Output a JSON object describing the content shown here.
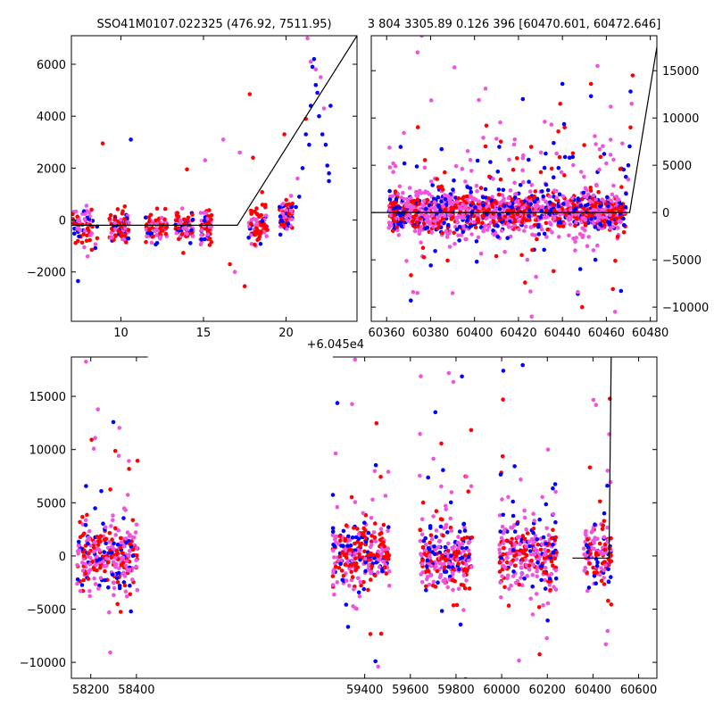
{
  "chart_data": [
    {
      "type": "scatter",
      "title": "SSO41M0107.022325 (476.92, 7511.95)",
      "offset_label": "+6.045e4",
      "xlim": [
        7,
        24.3
      ],
      "ylim": [
        -3900,
        7100
      ],
      "xticks": [
        10,
        15,
        20
      ],
      "yticks": [
        -2000,
        0,
        2000,
        4000,
        6000
      ],
      "tick_labels_y_side": "left",
      "model_line": [
        [
          7,
          -200
        ],
        [
          17.05,
          -200
        ],
        [
          24.3,
          7100
        ]
      ],
      "clusters": [
        {
          "x": [
            7.0,
            8.6
          ],
          "y_center": -300,
          "y_spread": 700
        },
        {
          "x": [
            9.3,
            10.5
          ],
          "y_center": -300,
          "y_spread": 550
        },
        {
          "x": [
            11.5,
            12.8
          ],
          "y_center": -250,
          "y_spread": 500
        },
        {
          "x": [
            13.3,
            14.4
          ],
          "y_center": -250,
          "y_spread": 500
        },
        {
          "x": [
            14.8,
            15.5
          ],
          "y_center": -250,
          "y_spread": 450
        },
        {
          "x": [
            17.7,
            18.9
          ],
          "y_center": -300,
          "y_spread": 700
        },
        {
          "x": [
            19.6,
            20.4
          ],
          "y_center": 200,
          "y_spread": 500
        }
      ],
      "outliers": [
        {
          "x": 8.9,
          "y": 2950,
          "c": "red"
        },
        {
          "x": 10.6,
          "y": 3100,
          "c": "blue"
        },
        {
          "x": 14.0,
          "y": 1950,
          "c": "red"
        },
        {
          "x": 15.1,
          "y": 2300,
          "c": "pink"
        },
        {
          "x": 16.2,
          "y": 3100,
          "c": "pink"
        },
        {
          "x": 17.8,
          "y": 4850,
          "c": "red"
        },
        {
          "x": 18.0,
          "y": 2400,
          "c": "red"
        },
        {
          "x": 17.5,
          "y": -2550,
          "c": "red"
        },
        {
          "x": 17.2,
          "y": 2600,
          "c": "pink"
        },
        {
          "x": 19.9,
          "y": 3300,
          "c": "red"
        },
        {
          "x": 7.4,
          "y": -2350,
          "c": "blue"
        },
        {
          "x": 16.9,
          "y": -2000,
          "c": "pink"
        },
        {
          "x": 16.6,
          "y": -1700,
          "c": "red"
        }
      ],
      "rising": [
        [
          20.6,
          500,
          "blue"
        ],
        [
          20.8,
          900,
          "blue"
        ],
        [
          21.0,
          2000,
          "blue"
        ],
        [
          21.2,
          3300,
          "blue"
        ],
        [
          21.4,
          2900,
          "blue"
        ],
        [
          21.5,
          4400,
          "blue"
        ],
        [
          21.6,
          5900,
          "blue"
        ],
        [
          21.7,
          6200,
          "blue"
        ],
        [
          21.8,
          5200,
          "blue"
        ],
        [
          21.9,
          4900,
          "blue"
        ],
        [
          22.0,
          4000,
          "blue"
        ],
        [
          22.2,
          3300,
          "blue"
        ],
        [
          22.4,
          2900,
          "blue"
        ],
        [
          22.5,
          2100,
          "blue"
        ],
        [
          22.6,
          1500,
          "blue"
        ],
        [
          22.7,
          4400,
          "blue"
        ],
        [
          21.3,
          7000,
          "pink"
        ],
        [
          21.5,
          6100,
          "pink"
        ],
        [
          21.8,
          5800,
          "pink"
        ],
        [
          22.1,
          5500,
          "pink"
        ],
        [
          22.3,
          4300,
          "pink"
        ],
        [
          21.2,
          3900,
          "red"
        ],
        [
          20.7,
          1600,
          "pink"
        ],
        [
          22.6,
          1800,
          "blue"
        ]
      ]
    },
    {
      "type": "scatter",
      "title": "3 804 3305.89 0.126 396 [60470.601, 60472.646]",
      "xlim": [
        60353,
        60483
      ],
      "ylim": [
        -11500,
        18700
      ],
      "xticks": [
        60360,
        60380,
        60400,
        60420,
        60440,
        60460,
        60480
      ],
      "yticks": [
        -10000,
        -5000,
        0,
        5000,
        10000,
        15000
      ],
      "tick_labels_y_side": "right",
      "model_line": [
        [
          60353,
          0
        ],
        [
          60470.6,
          0
        ],
        [
          60483,
          17500
        ]
      ],
      "bands": [
        [
          60361,
          60469
        ]
      ],
      "band_y_center": 0,
      "band_y_spread": 1200,
      "scatter_y_spread": 4500,
      "outliers": [
        [
          60363,
          5200,
          "pink"
        ],
        [
          60364,
          4900,
          "pink"
        ],
        [
          60376,
          18700,
          "pink"
        ],
        [
          60374,
          -8500,
          "pink"
        ],
        [
          60372,
          -8400,
          "pink"
        ],
        [
          60371,
          -9300,
          "blue"
        ],
        [
          60401,
          -5200,
          "blue"
        ],
        [
          60405,
          7000,
          "red"
        ],
        [
          60404,
          7900,
          "pink"
        ],
        [
          60405,
          13100,
          "pink"
        ],
        [
          60402,
          11900,
          "pink"
        ],
        [
          60422,
          12000,
          "blue"
        ],
        [
          60424,
          -5000,
          "pink"
        ],
        [
          60423,
          -7400,
          "red"
        ],
        [
          60428,
          -6800,
          "pink"
        ],
        [
          60426,
          -11000,
          "pink"
        ],
        [
          60435,
          9300,
          "pink"
        ],
        [
          60436,
          -6200,
          "red"
        ],
        [
          60439,
          11500,
          "red"
        ],
        [
          60441,
          9000,
          "red"
        ],
        [
          60447,
          -8600,
          "blue"
        ],
        [
          60447,
          -8400,
          "pink"
        ],
        [
          60449,
          -10000,
          "red"
        ],
        [
          60453,
          12300,
          "blue"
        ],
        [
          60453,
          13600,
          "red"
        ],
        [
          60456,
          15500,
          "pink"
        ],
        [
          60457,
          6700,
          "pink"
        ],
        [
          60455,
          -5000,
          "blue"
        ],
        [
          60459,
          6200,
          "blue"
        ],
        [
          60460,
          5200,
          "pink"
        ],
        [
          60464,
          -10500,
          "pink"
        ],
        [
          60462,
          11200,
          "pink"
        ],
        [
          60440,
          13600,
          "blue"
        ],
        [
          60410,
          7800,
          "pink"
        ],
        [
          60412,
          7500,
          "red"
        ],
        [
          60418,
          7200,
          "pink"
        ]
      ],
      "rising": [
        [
          60469,
          2000,
          "blue"
        ],
        [
          60470,
          5000,
          "blue"
        ],
        [
          60470.6,
          7000,
          "blue"
        ],
        [
          60471,
          9000,
          "red"
        ],
        [
          60471.5,
          11500,
          "pink"
        ],
        [
          60472,
          14500,
          "red"
        ],
        [
          60471,
          12800,
          "blue"
        ],
        [
          60470,
          3500,
          "pink"
        ]
      ]
    },
    {
      "type": "scatter",
      "title": "",
      "xlim": [
        58115,
        60680
      ],
      "ylim": [
        -11500,
        18700
      ],
      "xticks": [
        58200,
        58400,
        59400,
        59600,
        59800,
        60000,
        60200,
        60400,
        60600
      ],
      "yticks": [
        -10000,
        -5000,
        0,
        5000,
        10000,
        15000
      ],
      "tick_labels_y_side": "left",
      "axis_break": [
        58450,
        59260
      ],
      "model_line": [
        [
          60310,
          -200
        ],
        [
          60470.6,
          -200
        ],
        [
          60480,
          18700
        ]
      ],
      "bands": [
        [
          58140,
          58405
        ],
        [
          59260,
          59510
        ],
        [
          59640,
          59870
        ],
        [
          59990,
          60240
        ],
        [
          60360,
          60480
        ]
      ],
      "band_y_center": 0,
      "band_y_spread": 1700,
      "scatter_y_spread": 6500
    }
  ],
  "colors": {
    "red": "#ff0000",
    "blue": "#0000ff",
    "pink": "#ee55dd",
    "model_line": "#000000"
  }
}
